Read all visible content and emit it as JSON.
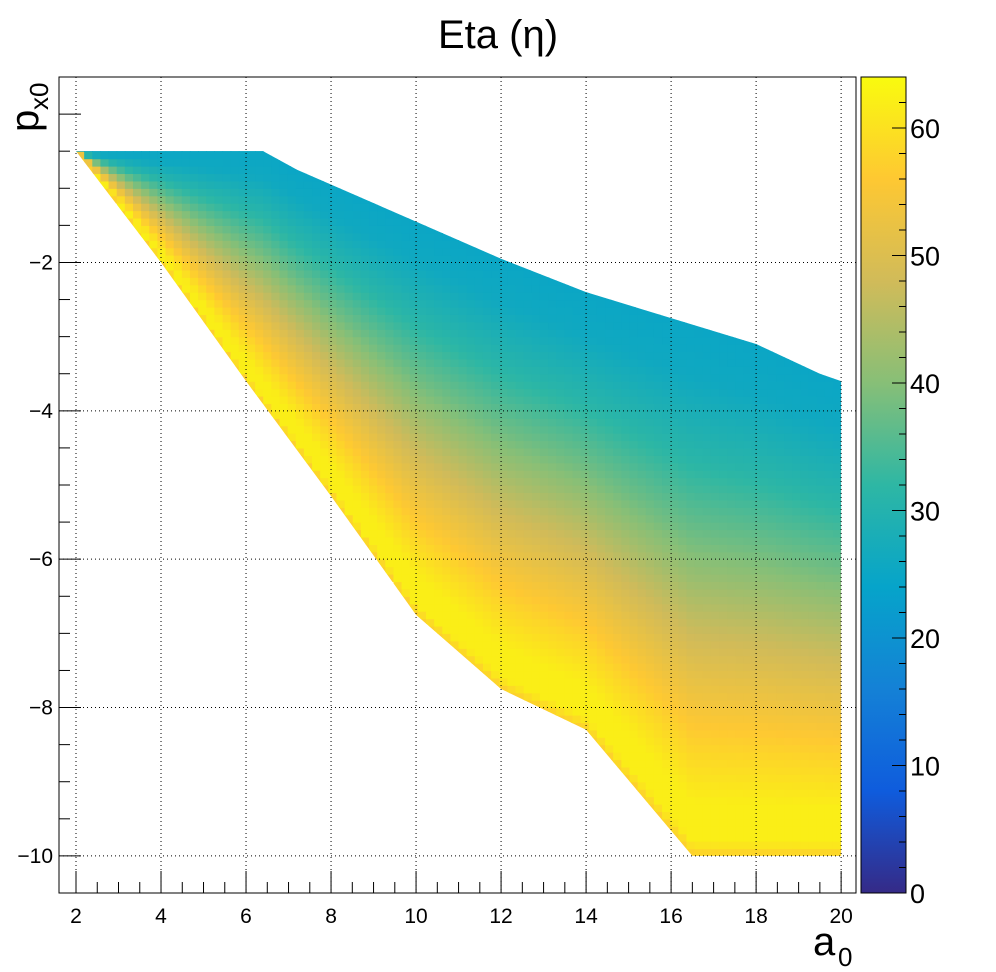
{
  "chart_data": {
    "type": "heatmap",
    "title": "Eta (η)",
    "xlabel": {
      "main": "a",
      "sub": "0"
    },
    "ylabel": {
      "main": "p",
      "sub": "x0"
    },
    "xlim": [
      1.6,
      20.35
    ],
    "ylim": [
      -10.5,
      0.5
    ],
    "x_ticks": [
      2,
      4,
      6,
      8,
      10,
      12,
      14,
      16,
      18,
      20
    ],
    "x_tick_labels": [
      "2",
      "4",
      "6",
      "8",
      "10",
      "12",
      "14",
      "16",
      "18",
      "20"
    ],
    "y_ticks": [
      -2,
      -4,
      -6,
      -8,
      -10
    ],
    "y_tick_labels": [
      "−2",
      "−4",
      "−6",
      "−8",
      "−10"
    ],
    "grid": true,
    "colorbar": {
      "range": [
        0,
        64
      ],
      "ticks": [
        0,
        10,
        20,
        30,
        40,
        50,
        60
      ],
      "tick_labels": [
        "0",
        "10",
        "20",
        "30",
        "40",
        "50",
        "60"
      ],
      "palette": "kBird"
    },
    "region": {
      "upper_boundary": [
        [
          2.0,
          -0.5
        ],
        [
          6.4,
          -0.5
        ],
        [
          7.2,
          -0.75
        ],
        [
          10.0,
          -1.45
        ],
        [
          12.0,
          -1.95
        ],
        [
          14.0,
          -2.4
        ],
        [
          16.0,
          -2.75
        ],
        [
          18.0,
          -3.1
        ],
        [
          19.5,
          -3.5
        ],
        [
          20.0,
          -3.6
        ]
      ],
      "lower_boundary": [
        [
          2.0,
          -0.5
        ],
        [
          4.0,
          -2.0
        ],
        [
          6.0,
          -3.6
        ],
        [
          8.0,
          -5.15
        ],
        [
          10.0,
          -6.75
        ],
        [
          12.0,
          -7.75
        ],
        [
          14.0,
          -8.3
        ],
        [
          16.5,
          -10.0
        ],
        [
          20.0,
          -10.0
        ]
      ]
    },
    "value_profile": {
      "description_free": true,
      "positions": [
        0.0,
        0.03,
        0.1,
        0.2,
        0.33,
        0.45,
        0.6,
        0.75,
        0.9,
        1.0
      ],
      "values": [
        57,
        62,
        62,
        58,
        52,
        46,
        38,
        31,
        26,
        25
      ]
    }
  }
}
